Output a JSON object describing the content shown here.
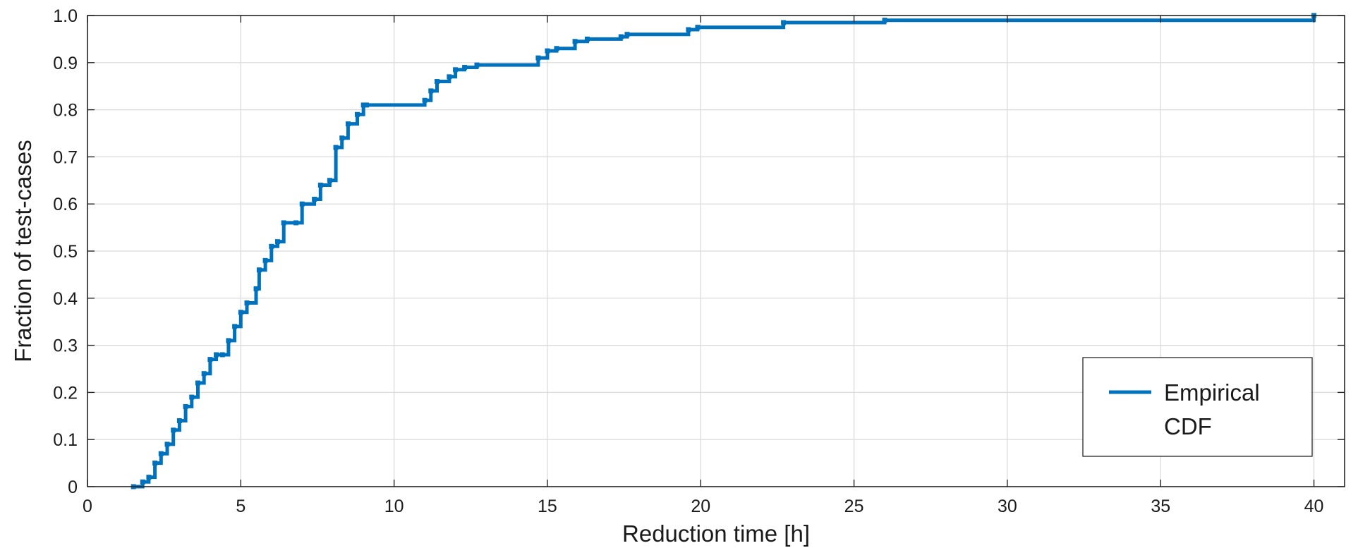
{
  "chart_data": {
    "type": "line",
    "step": true,
    "title": "",
    "xlabel": "Reduction time [h]",
    "ylabel": "Fraction of test-cases",
    "xlim": [
      0,
      41
    ],
    "ylim": [
      0,
      1
    ],
    "x_ticks": [
      0,
      5,
      10,
      15,
      20,
      25,
      30,
      35,
      40
    ],
    "y_ticks": [
      0,
      0.1,
      0.2,
      0.3,
      0.4,
      0.5,
      0.6,
      0.7,
      0.8,
      0.9,
      1.0
    ],
    "x_tick_labels": [
      "0",
      "5",
      "10",
      "15",
      "20",
      "25",
      "30",
      "35",
      "40"
    ],
    "y_tick_labels": [
      "0",
      "0.1",
      "0.2",
      "0.3",
      "0.4",
      "0.5",
      "0.6",
      "0.7",
      "0.8",
      "0.9",
      "1.0"
    ],
    "grid": true,
    "legend_position": "bottom-right",
    "series": [
      {
        "name": "Empirical CDF",
        "color": "#0072BD",
        "x": [
          1.5,
          1.8,
          2.0,
          2.2,
          2.4,
          2.6,
          2.8,
          3.0,
          3.2,
          3.4,
          3.6,
          3.8,
          4.0,
          4.2,
          4.4,
          4.6,
          4.8,
          5.0,
          5.2,
          5.5,
          5.6,
          5.8,
          6.0,
          6.2,
          6.4,
          6.8,
          7.0,
          7.4,
          7.6,
          7.9,
          8.1,
          8.3,
          8.5,
          8.8,
          9.0,
          9.1,
          11.0,
          11.2,
          11.4,
          11.8,
          12.0,
          12.3,
          12.7,
          14.7,
          15.0,
          15.3,
          15.9,
          16.3,
          17.4,
          17.6,
          19.6,
          19.9,
          22.7,
          26.0,
          40.0
        ],
        "y": [
          0.0,
          0.01,
          0.02,
          0.05,
          0.07,
          0.09,
          0.12,
          0.14,
          0.17,
          0.19,
          0.22,
          0.24,
          0.27,
          0.28,
          0.28,
          0.31,
          0.34,
          0.37,
          0.39,
          0.42,
          0.46,
          0.48,
          0.51,
          0.52,
          0.56,
          0.56,
          0.6,
          0.61,
          0.64,
          0.65,
          0.72,
          0.74,
          0.77,
          0.79,
          0.81,
          0.81,
          0.82,
          0.84,
          0.86,
          0.87,
          0.885,
          0.89,
          0.895,
          0.91,
          0.925,
          0.93,
          0.945,
          0.95,
          0.955,
          0.96,
          0.97,
          0.975,
          0.985,
          0.99,
          1.0
        ]
      }
    ]
  }
}
